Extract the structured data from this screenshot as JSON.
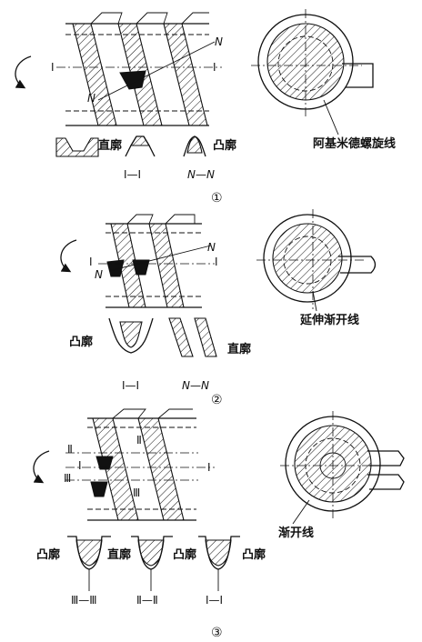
{
  "panel1": {
    "number": "①",
    "marker_i_left": "I",
    "marker_i_right": "I",
    "marker_n_top": "N",
    "marker_n_bottom": "N",
    "label_straight": "直廓",
    "label_convex": "凸廓",
    "section_i": "I—I",
    "section_n": "N—N",
    "curve_label": "阿基米德螺旋线"
  },
  "panel2": {
    "number": "②",
    "marker_i_left": "I",
    "marker_i_right": "I",
    "marker_n_left": "N",
    "marker_n_right": "N",
    "label_convex": "凸廓",
    "label_straight": "直廓",
    "section_i": "I—I",
    "section_n": "N—N",
    "curve_label": "延伸渐开线"
  },
  "panel3": {
    "number": "③",
    "marker_ii": "Ⅱ",
    "marker_i": "I",
    "marker_iii": "Ⅲ",
    "marker_ii_on_worm": "Ⅱ",
    "marker_iii_on_worm": "Ⅲ",
    "marker_i_right": "I",
    "label_convex_1": "凸廓",
    "label_straight": "直廓",
    "label_convex_2": "凸廓",
    "label_convex_3": "凸廓",
    "section_iii": "Ⅲ—Ⅲ",
    "section_ii": "Ⅱ—Ⅱ",
    "section_i": "I—I",
    "curve_label": "渐开线"
  }
}
